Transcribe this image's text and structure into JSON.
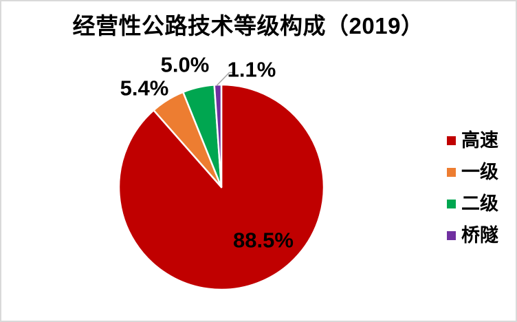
{
  "window": {
    "background": "#FFFFFF",
    "border_color": "#D9D9D9"
  },
  "chart_data": {
    "type": "pie",
    "title": "经营性公路技术等级构成（2019）",
    "value_unit": "%",
    "start_angle_deg": 0,
    "direction": "clockwise",
    "legend_position": "right",
    "label_color": "#000000",
    "slice_border_color": "#FFFFFF",
    "leader_line_color": "#A6A6A6",
    "slices": [
      {
        "key": "expressway",
        "name": "高速",
        "value": 88.5,
        "label": "88.5%",
        "color": "#C00000",
        "label_placement": "inside"
      },
      {
        "key": "grade1",
        "name": "一级",
        "value": 5.4,
        "label": "5.4%",
        "color": "#ED7D31",
        "label_placement": "outside"
      },
      {
        "key": "grade2",
        "name": "二级",
        "value": 5.0,
        "label": "5.0%",
        "color": "#00A650",
        "label_placement": "outside"
      },
      {
        "key": "bridge-tunnel",
        "name": "桥隧",
        "value": 1.1,
        "label": "1.1%",
        "color": "#7030A0",
        "label_placement": "outside-leader"
      }
    ]
  }
}
